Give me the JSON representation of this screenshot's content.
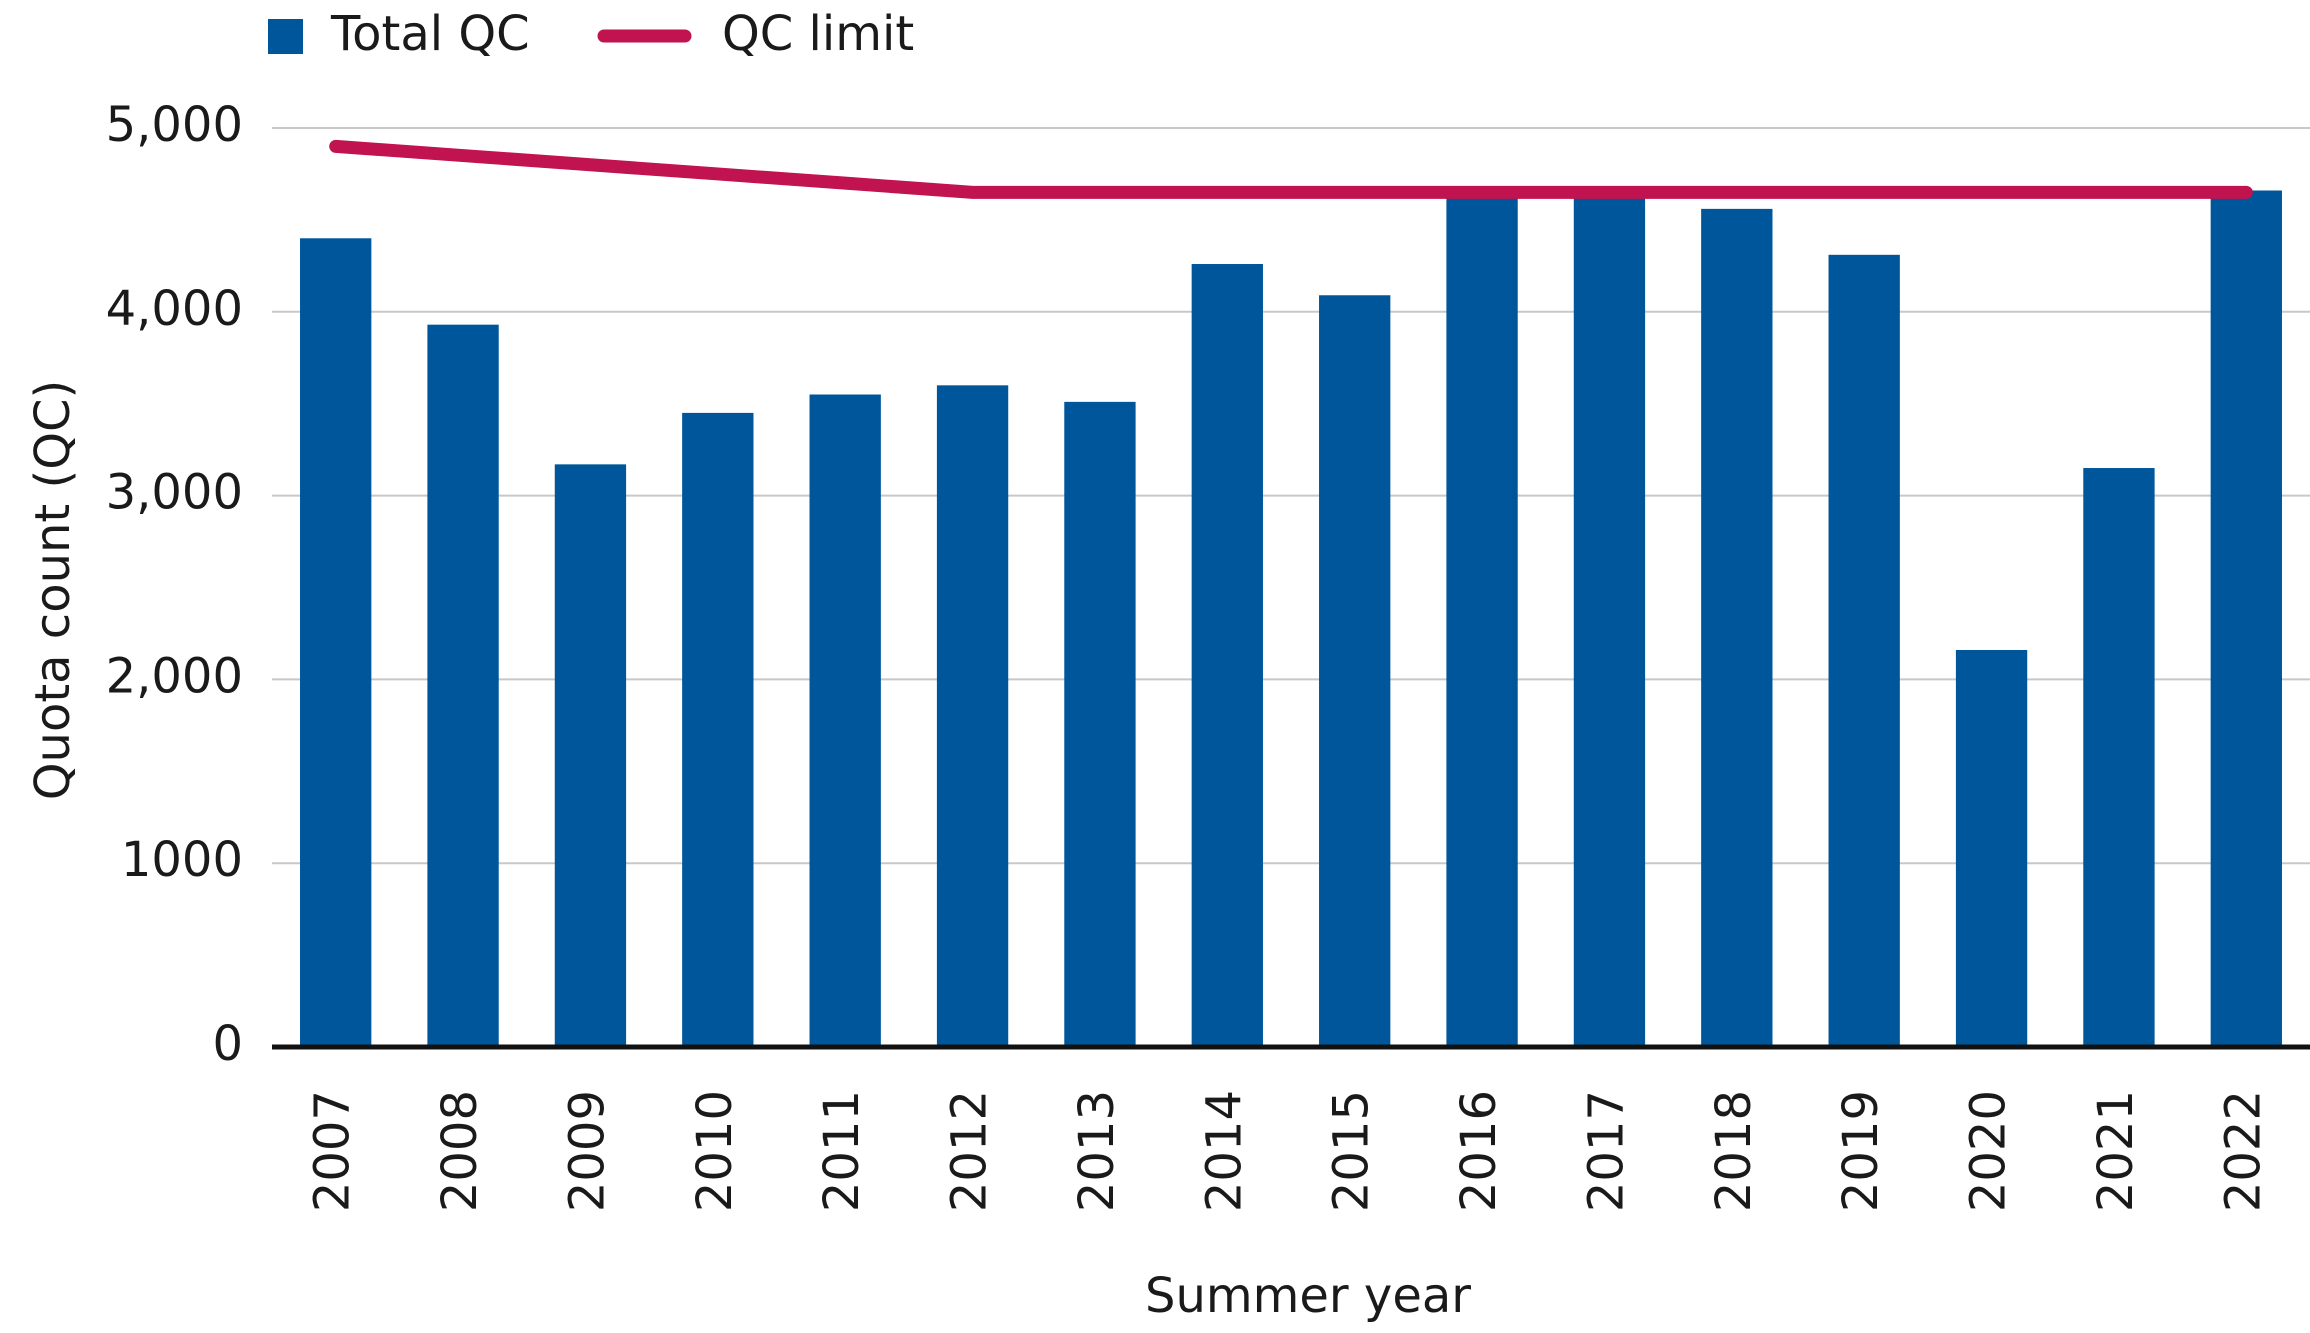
{
  "chart_data": {
    "type": "bar",
    "categories": [
      "2007",
      "2008",
      "2009",
      "2010",
      "2011",
      "2012",
      "2013",
      "2014",
      "2015",
      "2016",
      "2017",
      "2018",
      "2019",
      "2020",
      "2021",
      "2022"
    ],
    "series": [
      {
        "name": "Total QC",
        "type": "bar",
        "color": "#00569a",
        "values": [
          4400,
          3930,
          3170,
          3450,
          3550,
          3600,
          3510,
          4260,
          4090,
          4650,
          4650,
          4560,
          4310,
          2160,
          3150,
          4660
        ]
      },
      {
        "name": "QC limit",
        "type": "line",
        "color": "#c0134f",
        "values": [
          4900,
          4850,
          4800,
          4750,
          4700,
          4650,
          4650,
          4650,
          4650,
          4650,
          4650,
          4650,
          4650,
          4650,
          4650,
          4650
        ]
      }
    ],
    "xlabel": "Summer year",
    "ylabel": "Quota count (QC)",
    "ylim": [
      0,
      5000
    ],
    "yticks": [
      0,
      {
        "value": 1000,
        "label": "1000"
      },
      {
        "value": 2000,
        "label": "2,000"
      },
      {
        "value": 3000,
        "label": "3,000"
      },
      {
        "value": 4000,
        "label": "4,000"
      },
      {
        "value": 5000,
        "label": "5,000"
      }
    ],
    "grid": true,
    "legend": "top left"
  }
}
